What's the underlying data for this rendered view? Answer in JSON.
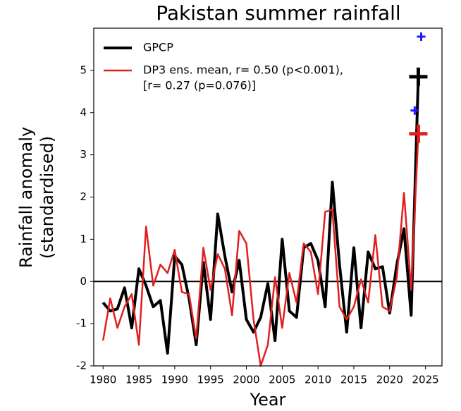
{
  "chart_data": {
    "type": "line",
    "title": "Pakistan summer rainfall",
    "xlabel": "Year",
    "ylabel": [
      "Rainfall anomaly",
      "(standardised)"
    ],
    "x": [
      1980,
      1981,
      1982,
      1983,
      1984,
      1985,
      1986,
      1987,
      1988,
      1989,
      1990,
      1991,
      1992,
      1993,
      1994,
      1995,
      1996,
      1997,
      1998,
      1999,
      2000,
      2001,
      2002,
      2003,
      2004,
      2005,
      2006,
      2007,
      2008,
      2009,
      2010,
      2011,
      2012,
      2013,
      2014,
      2015,
      2016,
      2017,
      2018,
      2019,
      2020,
      2021,
      2022,
      2023,
      2024
    ],
    "series": [
      {
        "name": [
          "GPCP"
        ],
        "color": "#000000",
        "width": 4,
        "values": [
          -0.5,
          -0.7,
          -0.65,
          -0.15,
          -1.1,
          0.3,
          -0.1,
          -0.6,
          -0.45,
          -1.7,
          0.6,
          0.4,
          -0.4,
          -1.5,
          0.45,
          -0.9,
          1.6,
          0.6,
          -0.25,
          0.5,
          -0.9,
          -1.2,
          -0.85,
          -0.05,
          -1.4,
          1.0,
          -0.7,
          -0.85,
          0.8,
          0.9,
          0.5,
          -0.6,
          2.35,
          0.4,
          -1.2,
          0.8,
          -1.1,
          0.7,
          0.3,
          0.35,
          -0.75,
          0.4,
          1.25,
          -0.8,
          4.85
        ]
      },
      {
        "name": [
          "DP3 ens. mean, r= 0.50 (p<0.001),",
          "[r= 0.27 (p=0.076)]"
        ],
        "color": "#e02020",
        "width": 2.5,
        "values": [
          -1.4,
          -0.4,
          -1.1,
          -0.6,
          -0.3,
          -1.5,
          1.3,
          -0.1,
          0.4,
          0.2,
          0.75,
          -0.25,
          -0.3,
          -1.35,
          0.8,
          -0.2,
          0.65,
          0.3,
          -0.8,
          1.2,
          0.9,
          -0.9,
          -2.0,
          -1.5,
          0.1,
          -1.1,
          0.2,
          -0.5,
          0.9,
          0.7,
          -0.3,
          1.65,
          1.7,
          -0.6,
          -0.9,
          -0.6,
          0.05,
          -0.5,
          1.1,
          -0.6,
          -0.7,
          0.1,
          2.1,
          -0.2,
          3.5
        ]
      }
    ],
    "markers": [
      {
        "x": 2024,
        "y": 4.85,
        "color": "#000000",
        "size": 26
      },
      {
        "x": 2024,
        "y": 3.5,
        "color": "#e02020",
        "size": 26
      },
      {
        "x": 2024.4,
        "y": 5.8,
        "color": "#1a1aff",
        "size": 12
      },
      {
        "x": 2023.5,
        "y": 4.05,
        "color": "#1a1aff",
        "size": 12
      }
    ],
    "xlim": [
      1978.7,
      2027.3
    ],
    "ylim": [
      -2,
      6
    ],
    "xticks": [
      1980,
      1985,
      1990,
      1995,
      2000,
      2005,
      2010,
      2015,
      2020,
      2025
    ],
    "yticks": [
      -2,
      -1,
      0,
      1,
      2,
      3,
      4,
      5
    ],
    "zero_line": 0,
    "legend": "upper left"
  }
}
